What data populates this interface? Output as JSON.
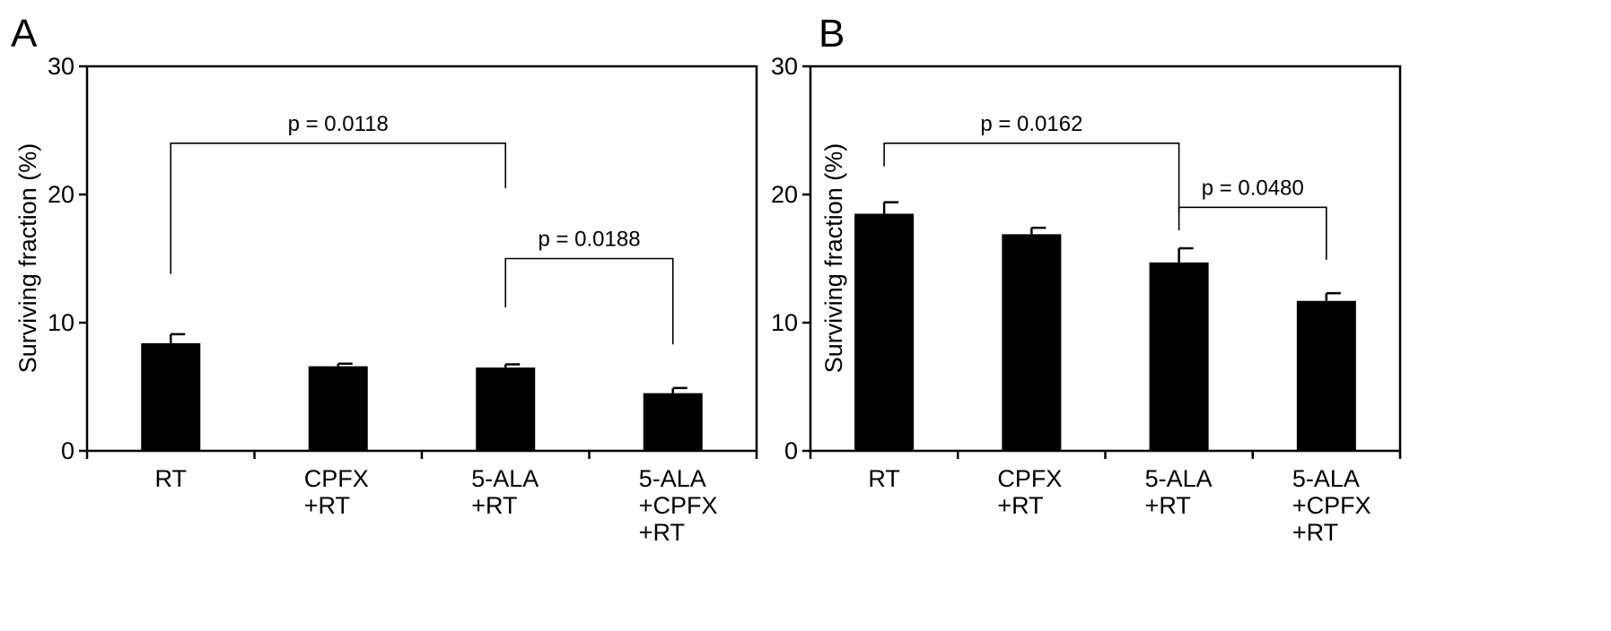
{
  "chart_data": [
    {
      "panel": "A",
      "type": "bar",
      "categories": [
        [
          "RT"
        ],
        [
          "CPFX",
          "+RT"
        ],
        [
          "5-ALA",
          "+RT"
        ],
        [
          "5-ALA",
          "+CPFX",
          "+RT"
        ]
      ],
      "values": [
        8.4,
        6.6,
        6.5,
        4.5
      ],
      "errors": [
        0.7,
        0.2,
        0.25,
        0.4
      ],
      "ylabel": "Surviving fraction (%)",
      "ylim": [
        0,
        30
      ],
      "yticks": [
        0,
        10,
        20,
        30
      ],
      "bar_color": "#000000",
      "annotations": [
        {
          "from": 0,
          "to": 2,
          "y": 24,
          "from_drop": 13.8,
          "to_drop": 20.5,
          "label": "p = 0.0118"
        },
        {
          "from": 2,
          "to": 3,
          "y": 15,
          "from_drop": 11.2,
          "to_drop": 8.3,
          "label": "p = 0.0188"
        }
      ]
    },
    {
      "panel": "B",
      "type": "bar",
      "categories": [
        [
          "RT"
        ],
        [
          "CPFX",
          "+RT"
        ],
        [
          "5-ALA",
          "+RT"
        ],
        [
          "5-ALA",
          "+CPFX",
          "+RT"
        ]
      ],
      "values": [
        18.5,
        16.9,
        14.7,
        11.7
      ],
      "errors": [
        0.9,
        0.5,
        1.1,
        0.6
      ],
      "ylabel": "Surviving fraction (%)",
      "ylim": [
        0,
        30
      ],
      "yticks": [
        0,
        10,
        20,
        30
      ],
      "bar_color": "#000000",
      "annotations": [
        {
          "from": 0,
          "to": 2,
          "y": 24,
          "from_drop": 22.2,
          "to_drop": 18.6,
          "label": "p = 0.0162"
        },
        {
          "from": 2,
          "to": 3,
          "y": 19,
          "from_drop": 17.2,
          "to_drop": 14.9,
          "label": "p = 0.0480"
        }
      ]
    }
  ]
}
